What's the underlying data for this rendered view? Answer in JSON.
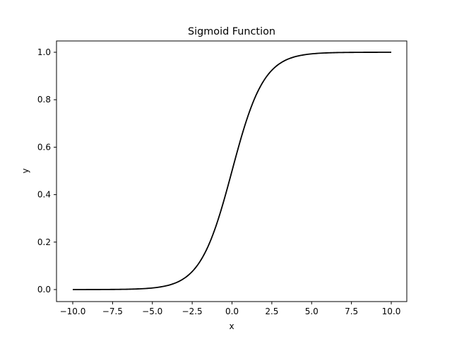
{
  "chart_data": {
    "type": "line",
    "title": "Sigmoid Function",
    "xlabel": "x",
    "ylabel": "y",
    "xlim": [
      -11,
      11
    ],
    "ylim": [
      -0.05,
      1.05
    ],
    "grid": false,
    "legend": null,
    "xticks": [
      "−10.0",
      "−7.5",
      "−5.0",
      "−2.5",
      "0.0",
      "2.5",
      "5.0",
      "7.5",
      "10.0"
    ],
    "yticks": [
      "0.0",
      "0.2",
      "0.4",
      "0.6",
      "0.8",
      "1.0"
    ],
    "series": [
      {
        "name": "sigmoid",
        "color": "#000000",
        "x": [
          -10,
          -9,
          -8,
          -7,
          -6,
          -5,
          -4,
          -3,
          -2.5,
          -2,
          -1.5,
          -1,
          -0.5,
          0,
          0.5,
          1,
          1.5,
          2,
          2.5,
          3,
          4,
          5,
          6,
          7,
          8,
          9,
          10
        ],
        "y": [
          0.0,
          0.0001,
          0.0003,
          0.0009,
          0.0025,
          0.0067,
          0.018,
          0.0474,
          0.0759,
          0.1192,
          0.1824,
          0.2689,
          0.3775,
          0.5,
          0.6225,
          0.7311,
          0.8176,
          0.8808,
          0.9241,
          0.9526,
          0.982,
          0.9933,
          0.9975,
          0.9991,
          0.9997,
          0.9999,
          1.0
        ]
      }
    ]
  }
}
